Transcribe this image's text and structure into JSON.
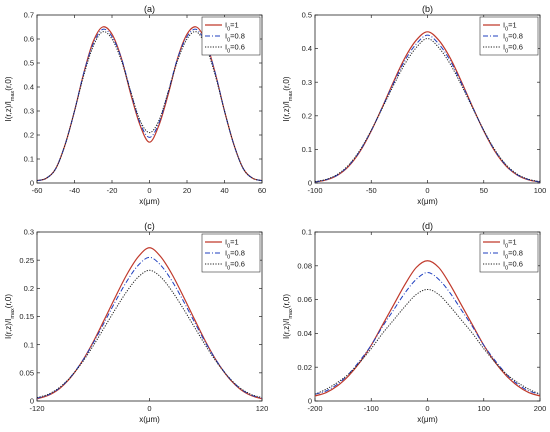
{
  "figure": {
    "legend_labels": [
      "I0=1",
      "I0=0.8",
      "I0=0.6"
    ]
  },
  "chart_data": [
    {
      "type": "line",
      "title": "(a)",
      "xlabel": "x(μm)",
      "ylabel": "I(r,z)/I_max(r,0)",
      "xlim": [
        -60,
        60
      ],
      "ylim": [
        0,
        0.7
      ],
      "xticks": [
        -60,
        -40,
        -20,
        0,
        20,
        40,
        60
      ],
      "yticks": [
        0,
        0.1,
        0.2,
        0.3,
        0.4,
        0.5,
        0.6,
        0.7
      ],
      "legend": "top-right",
      "grid": false,
      "x": [
        -60,
        -55,
        -50,
        -45,
        -40,
        -35,
        -30,
        -25,
        -20,
        -15,
        -10,
        -5,
        0,
        5,
        10,
        15,
        20,
        25,
        30,
        35,
        40,
        45,
        50,
        55,
        60
      ],
      "series": [
        {
          "name": "I0=1",
          "color": "#c0392b",
          "style": "solid",
          "values": [
            0.01,
            0.02,
            0.06,
            0.16,
            0.3,
            0.46,
            0.59,
            0.65,
            0.62,
            0.52,
            0.37,
            0.24,
            0.17,
            0.24,
            0.37,
            0.52,
            0.62,
            0.65,
            0.59,
            0.46,
            0.3,
            0.16,
            0.06,
            0.02,
            0.01
          ]
        },
        {
          "name": "I0=0.8",
          "color": "#1f3fbf",
          "style": "dashdot",
          "values": [
            0.01,
            0.02,
            0.06,
            0.16,
            0.3,
            0.46,
            0.58,
            0.64,
            0.61,
            0.52,
            0.38,
            0.25,
            0.19,
            0.25,
            0.38,
            0.52,
            0.61,
            0.64,
            0.58,
            0.46,
            0.3,
            0.16,
            0.06,
            0.02,
            0.01
          ]
        },
        {
          "name": "I0=0.6",
          "color": "#222222",
          "style": "dotted",
          "values": [
            0.01,
            0.02,
            0.06,
            0.16,
            0.3,
            0.45,
            0.57,
            0.63,
            0.6,
            0.51,
            0.38,
            0.26,
            0.21,
            0.26,
            0.38,
            0.51,
            0.6,
            0.63,
            0.57,
            0.45,
            0.3,
            0.16,
            0.06,
            0.02,
            0.01
          ]
        }
      ]
    },
    {
      "type": "line",
      "title": "(b)",
      "xlabel": "x(μm)",
      "ylabel": "I(r,z)/I_max(r,0)",
      "xlim": [
        -100,
        100
      ],
      "ylim": [
        0,
        0.5
      ],
      "xticks": [
        -100,
        -50,
        0,
        50,
        100
      ],
      "yticks": [
        0,
        0.1,
        0.2,
        0.3,
        0.4,
        0.5
      ],
      "legend": "top-right",
      "grid": false,
      "x": [
        -100,
        -90,
        -80,
        -70,
        -60,
        -50,
        -40,
        -30,
        -20,
        -10,
        0,
        10,
        20,
        30,
        40,
        50,
        60,
        70,
        80,
        90,
        100
      ],
      "series": [
        {
          "name": "I0=1",
          "color": "#c0392b",
          "style": "solid",
          "values": [
            0.003,
            0.009,
            0.023,
            0.05,
            0.094,
            0.155,
            0.227,
            0.303,
            0.373,
            0.425,
            0.45,
            0.425,
            0.373,
            0.303,
            0.227,
            0.155,
            0.094,
            0.05,
            0.023,
            0.009,
            0.003
          ]
        },
        {
          "name": "I0=0.8",
          "color": "#1f3fbf",
          "style": "dashdot",
          "values": [
            0.003,
            0.01,
            0.024,
            0.052,
            0.096,
            0.156,
            0.226,
            0.298,
            0.365,
            0.414,
            0.44,
            0.414,
            0.365,
            0.298,
            0.226,
            0.156,
            0.096,
            0.052,
            0.024,
            0.01,
            0.003
          ]
        },
        {
          "name": "I0=0.6",
          "color": "#222222",
          "style": "dotted",
          "values": [
            0.004,
            0.011,
            0.026,
            0.054,
            0.098,
            0.157,
            0.224,
            0.292,
            0.355,
            0.403,
            0.43,
            0.403,
            0.355,
            0.292,
            0.224,
            0.157,
            0.098,
            0.054,
            0.026,
            0.011,
            0.004
          ]
        }
      ]
    },
    {
      "type": "line",
      "title": "(c)",
      "xlabel": "x(μm)",
      "ylabel": "I(r,z)/I_max(r,0)",
      "xlim": [
        -120,
        120
      ],
      "ylim": [
        0,
        0.3
      ],
      "xticks": [
        -120,
        0,
        120
      ],
      "yticks": [
        0,
        0.05,
        0.1,
        0.15,
        0.2,
        0.25,
        0.3
      ],
      "legend": "top-right",
      "grid": false,
      "x": [
        -120,
        -108,
        -96,
        -84,
        -72,
        -60,
        -48,
        -36,
        -24,
        -12,
        0,
        12,
        24,
        36,
        48,
        60,
        72,
        84,
        96,
        108,
        120
      ],
      "series": [
        {
          "name": "I0=1",
          "color": "#c0392b",
          "style": "solid",
          "values": [
            0.004,
            0.01,
            0.022,
            0.042,
            0.07,
            0.105,
            0.145,
            0.186,
            0.225,
            0.256,
            0.272,
            0.256,
            0.225,
            0.186,
            0.145,
            0.105,
            0.07,
            0.042,
            0.022,
            0.01,
            0.004
          ]
        },
        {
          "name": "I0=0.8",
          "color": "#1f3fbf",
          "style": "dashdot",
          "values": [
            0.005,
            0.011,
            0.023,
            0.043,
            0.07,
            0.103,
            0.14,
            0.178,
            0.213,
            0.241,
            0.255,
            0.241,
            0.213,
            0.178,
            0.14,
            0.103,
            0.07,
            0.043,
            0.023,
            0.011,
            0.005
          ]
        },
        {
          "name": "I0=0.6",
          "color": "#222222",
          "style": "dotted",
          "values": [
            0.006,
            0.012,
            0.024,
            0.043,
            0.068,
            0.098,
            0.131,
            0.164,
            0.195,
            0.22,
            0.232,
            0.22,
            0.195,
            0.164,
            0.131,
            0.098,
            0.068,
            0.043,
            0.024,
            0.012,
            0.006
          ]
        }
      ]
    },
    {
      "type": "line",
      "title": "(d)",
      "xlabel": "x(μm)",
      "ylabel": "I(r,z)/I_max(r,0)",
      "xlim": [
        -200,
        200
      ],
      "ylim": [
        0,
        0.1
      ],
      "xticks": [
        -200,
        -100,
        0,
        100,
        200
      ],
      "yticks": [
        0,
        0.02,
        0.04,
        0.06,
        0.08,
        0.1
      ],
      "legend": "top-right",
      "grid": false,
      "x": [
        -200,
        -180,
        -160,
        -140,
        -120,
        -100,
        -80,
        -60,
        -40,
        -20,
        0,
        20,
        40,
        60,
        80,
        100,
        120,
        140,
        160,
        180,
        200
      ],
      "series": [
        {
          "name": "I0=1",
          "color": "#c0392b",
          "style": "solid",
          "values": [
            0.003,
            0.005,
            0.009,
            0.015,
            0.023,
            0.033,
            0.045,
            0.057,
            0.069,
            0.079,
            0.083,
            0.079,
            0.069,
            0.057,
            0.045,
            0.033,
            0.023,
            0.015,
            0.009,
            0.005,
            0.003
          ]
        },
        {
          "name": "I0=0.8",
          "color": "#1f3fbf",
          "style": "dashdot",
          "values": [
            0.004,
            0.006,
            0.01,
            0.016,
            0.024,
            0.033,
            0.044,
            0.054,
            0.064,
            0.072,
            0.076,
            0.072,
            0.064,
            0.054,
            0.044,
            0.033,
            0.024,
            0.016,
            0.01,
            0.006,
            0.004
          ]
        },
        {
          "name": "I0=0.6",
          "color": "#222222",
          "style": "dotted",
          "values": [
            0.004,
            0.007,
            0.011,
            0.016,
            0.023,
            0.031,
            0.04,
            0.048,
            0.056,
            0.063,
            0.066,
            0.063,
            0.056,
            0.048,
            0.04,
            0.031,
            0.023,
            0.016,
            0.011,
            0.007,
            0.004
          ]
        }
      ]
    }
  ]
}
